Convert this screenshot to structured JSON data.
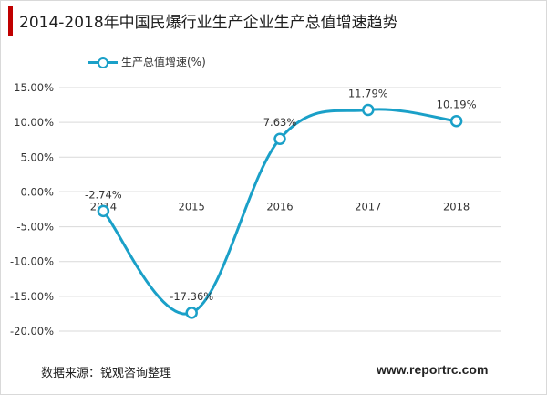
{
  "title": "2014-2018年中国民爆行业生产企业生产总值增速趋势",
  "source_text": "数据来源：锐观咨询整理",
  "website": "www.reportrc.com",
  "colors": {
    "series": "#1aa0c8",
    "title_accent": "#c00000",
    "grid": "#d9d9d9",
    "zero_axis": "#7f7f7f"
  },
  "chart_data": {
    "type": "line",
    "title": "2014-2018年中国民爆行业生产企业生产总值增速趋势",
    "x": [
      "2014",
      "2015",
      "2016",
      "2017",
      "2018"
    ],
    "series": [
      {
        "name": "生产总值增速(%)",
        "values": [
          -2.74,
          -17.36,
          7.63,
          11.79,
          10.19
        ]
      }
    ],
    "data_labels": [
      "-2.74%",
      "-17.36%",
      "7.63%",
      "11.79%",
      "10.19%"
    ],
    "ylim": [
      -20,
      15
    ],
    "yticks": [
      15,
      10,
      5,
      0,
      -5,
      -10,
      -15,
      -20
    ],
    "ytick_labels": [
      "15.00%",
      "10.00%",
      "5.00%",
      "0.00%",
      "-5.00%",
      "-10.00%",
      "-15.00%",
      "-20.00%"
    ],
    "smooth": true,
    "grid": true,
    "legend": "top-left"
  }
}
